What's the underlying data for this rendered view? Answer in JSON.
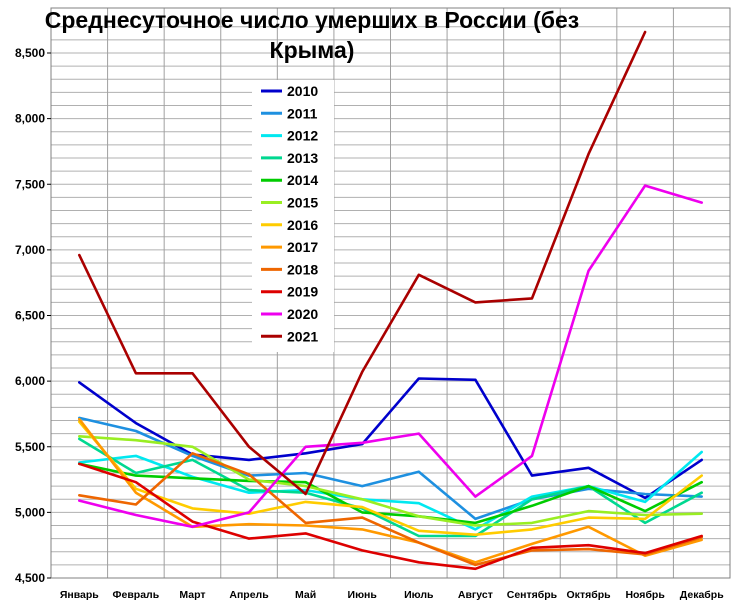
{
  "chart_data": {
    "type": "line",
    "title": "Среднесуточное число умерших в России (без Крыма)",
    "title_lines": [
      "Среднесуточное число умерших в России (без",
      "Крыма)"
    ],
    "xlabel": "",
    "ylabel": "",
    "ylim": [
      4500,
      8700
    ],
    "y_ticks": [
      4500,
      5000,
      5500,
      6000,
      6500,
      7000,
      7500,
      8000,
      8500
    ],
    "y_tick_labels": [
      "4,500",
      "5,000",
      "5,500",
      "6,000",
      "6,500",
      "7,000",
      "7,500",
      "8,000",
      "8,500"
    ],
    "grid": true,
    "legend_position": "top-left",
    "categories": [
      "Январь",
      "Февраль",
      "Март",
      "Апрель",
      "Май",
      "Июнь",
      "Июль",
      "Август",
      "Сентябрь",
      "Октябрь",
      "Ноябрь",
      "Декабрь"
    ],
    "series": [
      {
        "name": "2010",
        "color": "#0000cc",
        "values": [
          5990,
          5680,
          5440,
          5400,
          5450,
          5520,
          6020,
          6010,
          5280,
          5340,
          5110,
          5400
        ]
      },
      {
        "name": "2011",
        "color": "#1e90e0",
        "values": [
          5720,
          5620,
          5430,
          5280,
          5300,
          5200,
          5310,
          4950,
          5100,
          5180,
          5140,
          5120
        ]
      },
      {
        "name": "2012",
        "color": "#00e8f0",
        "values": [
          5380,
          5430,
          5270,
          5150,
          5170,
          5100,
          5070,
          4870,
          5120,
          5200,
          5080,
          5460
        ]
      },
      {
        "name": "2013",
        "color": "#00d890",
        "values": [
          5560,
          5300,
          5400,
          5170,
          5150,
          5030,
          4820,
          4820,
          5100,
          5200,
          4920,
          5150
        ]
      },
      {
        "name": "2014",
        "color": "#00cc00",
        "values": [
          5370,
          5280,
          5260,
          5240,
          5230,
          5000,
          4970,
          4920,
          5050,
          5200,
          5010,
          5230
        ]
      },
      {
        "name": "2015",
        "color": "#99ee22",
        "values": [
          5580,
          5550,
          5500,
          5250,
          5200,
          5100,
          4970,
          4900,
          4920,
          5010,
          4980,
          4990
        ]
      },
      {
        "name": "2016",
        "color": "#ffcc00",
        "values": [
          5690,
          5180,
          5030,
          4990,
          5080,
          5040,
          4860,
          4830,
          4870,
          4960,
          4950,
          5280
        ]
      },
      {
        "name": "2017",
        "color": "#ff9900",
        "values": [
          5710,
          5150,
          4890,
          4910,
          4900,
          4870,
          4770,
          4620,
          4760,
          4890,
          4670,
          4790
        ]
      },
      {
        "name": "2018",
        "color": "#ee6600",
        "values": [
          5130,
          5060,
          5450,
          5290,
          4920,
          4960,
          4770,
          4600,
          4710,
          4720,
          4680,
          4810
        ]
      },
      {
        "name": "2019",
        "color": "#dd0000",
        "values": [
          5370,
          5230,
          4930,
          4800,
          4840,
          4710,
          4620,
          4570,
          4730,
          4750,
          4690,
          4820
        ]
      },
      {
        "name": "2020",
        "color": "#ee00ee",
        "values": [
          5090,
          4980,
          4890,
          5000,
          5500,
          5530,
          5600,
          5120,
          5430,
          6840,
          7490,
          7360
        ]
      },
      {
        "name": "2021",
        "color": "#aa0000",
        "values": [
          6960,
          6060,
          6060,
          5500,
          5140,
          6070,
          6810,
          6600,
          6630,
          7730,
          8660,
          null
        ]
      }
    ]
  }
}
